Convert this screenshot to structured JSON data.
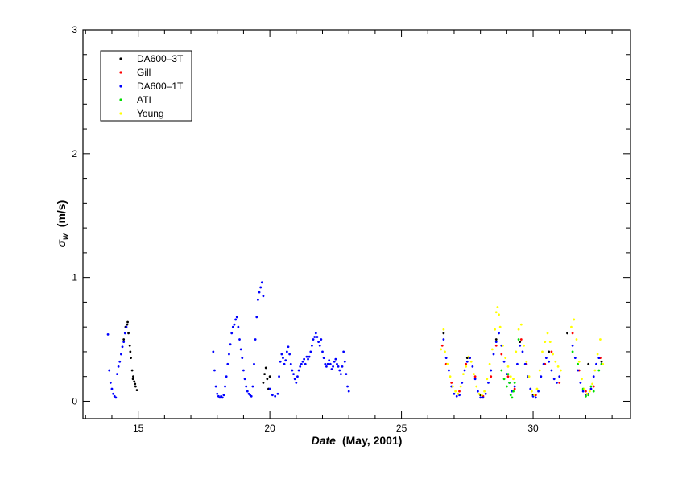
{
  "chart_data": {
    "type": "scatter",
    "xlabel_main": "Date",
    "xlabel_rest": "(May,  2001)",
    "ylabel_symbol": "σ",
    "ylabel_sub": "w",
    "ylabel_unit": "(m/s)",
    "xlim": [
      12.9,
      33.7
    ],
    "ylim": [
      -0.14,
      3.0
    ],
    "xticks": [
      15,
      20,
      25,
      30
    ],
    "yticks": [
      0,
      1,
      2,
      3
    ],
    "legend_position": "top-left",
    "grid": false,
    "series": [
      {
        "name": "DA600–3T",
        "color": "#000000",
        "points": [
          [
            14.45,
            0.5
          ],
          [
            14.52,
            0.6
          ],
          [
            14.58,
            0.62
          ],
          [
            14.63,
            0.55
          ],
          [
            14.68,
            0.45
          ],
          [
            14.72,
            0.35
          ],
          [
            14.77,
            0.25
          ],
          [
            14.81,
            0.2
          ],
          [
            14.85,
            0.16
          ],
          [
            14.9,
            0.12
          ],
          [
            14.95,
            0.09
          ],
          [
            14.6,
            0.64
          ],
          [
            14.7,
            0.4
          ],
          [
            14.8,
            0.18
          ],
          [
            14.88,
            0.14
          ],
          [
            19.75,
            0.15
          ],
          [
            19.8,
            0.22
          ],
          [
            19.85,
            0.27
          ],
          [
            19.9,
            0.18
          ],
          [
            19.95,
            0.1
          ],
          [
            20.0,
            0.2
          ],
          [
            26.6,
            0.55
          ],
          [
            27.5,
            0.35
          ],
          [
            28.0,
            0.05
          ],
          [
            28.6,
            0.5
          ],
          [
            29.5,
            0.48
          ],
          [
            30.0,
            0.05
          ],
          [
            30.6,
            0.4
          ],
          [
            31.3,
            0.55
          ],
          [
            32.1,
            0.3
          ],
          [
            32.6,
            0.32
          ]
        ]
      },
      {
        "name": "Gill",
        "color": "#ff0000",
        "points": [
          [
            26.55,
            0.45
          ],
          [
            26.7,
            0.3
          ],
          [
            26.9,
            0.15
          ],
          [
            27.2,
            0.08
          ],
          [
            27.45,
            0.3
          ],
          [
            27.6,
            0.35
          ],
          [
            27.8,
            0.2
          ],
          [
            28.1,
            0.04
          ],
          [
            28.4,
            0.2
          ],
          [
            28.6,
            0.45
          ],
          [
            28.8,
            0.38
          ],
          [
            29.05,
            0.2
          ],
          [
            29.3,
            0.1
          ],
          [
            29.55,
            0.5
          ],
          [
            29.75,
            0.3
          ],
          [
            30.1,
            0.05
          ],
          [
            30.45,
            0.3
          ],
          [
            30.7,
            0.4
          ],
          [
            31.0,
            0.15
          ],
          [
            31.5,
            0.55
          ],
          [
            31.75,
            0.25
          ],
          [
            32.0,
            0.08
          ],
          [
            32.3,
            0.12
          ],
          [
            32.55,
            0.35
          ]
        ]
      },
      {
        "name": "DA600–1T",
        "color": "#0000ff",
        "points": [
          [
            13.85,
            0.54
          ],
          [
            13.9,
            0.25
          ],
          [
            13.95,
            0.15
          ],
          [
            14.0,
            0.1
          ],
          [
            14.05,
            0.06
          ],
          [
            14.1,
            0.04
          ],
          [
            14.15,
            0.03
          ],
          [
            14.2,
            0.22
          ],
          [
            14.25,
            0.28
          ],
          [
            14.3,
            0.32
          ],
          [
            14.35,
            0.38
          ],
          [
            14.4,
            0.44
          ],
          [
            14.45,
            0.48
          ],
          [
            14.5,
            0.55
          ],
          [
            14.55,
            0.6
          ],
          [
            17.85,
            0.4
          ],
          [
            17.9,
            0.25
          ],
          [
            17.95,
            0.12
          ],
          [
            18.0,
            0.06
          ],
          [
            18.05,
            0.04
          ],
          [
            18.1,
            0.03
          ],
          [
            18.15,
            0.04
          ],
          [
            18.2,
            0.03
          ],
          [
            18.25,
            0.05
          ],
          [
            18.3,
            0.12
          ],
          [
            18.35,
            0.2
          ],
          [
            18.4,
            0.3
          ],
          [
            18.45,
            0.38
          ],
          [
            18.5,
            0.46
          ],
          [
            18.55,
            0.55
          ],
          [
            18.6,
            0.6
          ],
          [
            18.65,
            0.62
          ],
          [
            18.7,
            0.66
          ],
          [
            18.75,
            0.68
          ],
          [
            18.8,
            0.6
          ],
          [
            18.85,
            0.5
          ],
          [
            18.9,
            0.42
          ],
          [
            18.95,
            0.35
          ],
          [
            19.0,
            0.25
          ],
          [
            19.05,
            0.18
          ],
          [
            19.1,
            0.12
          ],
          [
            19.15,
            0.08
          ],
          [
            19.2,
            0.06
          ],
          [
            19.25,
            0.05
          ],
          [
            19.3,
            0.04
          ],
          [
            19.35,
            0.12
          ],
          [
            19.4,
            0.3
          ],
          [
            19.45,
            0.5
          ],
          [
            19.5,
            0.68
          ],
          [
            19.55,
            0.82
          ],
          [
            19.6,
            0.88
          ],
          [
            19.65,
            0.92
          ],
          [
            19.7,
            0.96
          ],
          [
            19.75,
            0.85
          ],
          [
            20.0,
            0.1
          ],
          [
            20.1,
            0.05
          ],
          [
            20.2,
            0.04
          ],
          [
            20.3,
            0.06
          ],
          [
            20.35,
            0.2
          ],
          [
            20.4,
            0.32
          ],
          [
            20.45,
            0.38
          ],
          [
            20.5,
            0.35
          ],
          [
            20.55,
            0.3
          ],
          [
            20.6,
            0.33
          ],
          [
            20.65,
            0.4
          ],
          [
            20.7,
            0.44
          ],
          [
            20.75,
            0.38
          ],
          [
            20.8,
            0.3
          ],
          [
            20.85,
            0.25
          ],
          [
            20.9,
            0.22
          ],
          [
            20.95,
            0.18
          ],
          [
            21.0,
            0.15
          ],
          [
            21.05,
            0.2
          ],
          [
            21.1,
            0.25
          ],
          [
            21.15,
            0.28
          ],
          [
            21.2,
            0.3
          ],
          [
            21.25,
            0.32
          ],
          [
            21.3,
            0.34
          ],
          [
            21.35,
            0.3
          ],
          [
            21.4,
            0.36
          ],
          [
            21.45,
            0.34
          ],
          [
            21.5,
            0.36
          ],
          [
            21.55,
            0.4
          ],
          [
            21.6,
            0.45
          ],
          [
            21.65,
            0.5
          ],
          [
            21.7,
            0.52
          ],
          [
            21.75,
            0.55
          ],
          [
            21.8,
            0.52
          ],
          [
            21.85,
            0.48
          ],
          [
            21.9,
            0.45
          ],
          [
            21.95,
            0.5
          ],
          [
            22.0,
            0.4
          ],
          [
            22.05,
            0.35
          ],
          [
            22.1,
            0.3
          ],
          [
            22.15,
            0.28
          ],
          [
            22.2,
            0.3
          ],
          [
            22.25,
            0.33
          ],
          [
            22.3,
            0.3
          ],
          [
            22.35,
            0.26
          ],
          [
            22.4,
            0.28
          ],
          [
            22.45,
            0.32
          ],
          [
            22.5,
            0.34
          ],
          [
            22.55,
            0.3
          ],
          [
            22.6,
            0.28
          ],
          [
            22.65,
            0.25
          ],
          [
            22.7,
            0.22
          ],
          [
            22.75,
            0.28
          ],
          [
            22.8,
            0.4
          ],
          [
            22.85,
            0.32
          ],
          [
            22.9,
            0.22
          ],
          [
            22.95,
            0.12
          ],
          [
            23.0,
            0.08
          ],
          [
            26.6,
            0.5
          ],
          [
            26.7,
            0.35
          ],
          [
            26.8,
            0.25
          ],
          [
            26.9,
            0.12
          ],
          [
            27.0,
            0.06
          ],
          [
            27.1,
            0.04
          ],
          [
            27.2,
            0.05
          ],
          [
            27.3,
            0.15
          ],
          [
            27.4,
            0.25
          ],
          [
            27.5,
            0.32
          ],
          [
            27.6,
            0.35
          ],
          [
            27.7,
            0.28
          ],
          [
            27.8,
            0.18
          ],
          [
            27.9,
            0.08
          ],
          [
            28.0,
            0.03
          ],
          [
            28.1,
            0.03
          ],
          [
            28.2,
            0.06
          ],
          [
            28.3,
            0.15
          ],
          [
            28.4,
            0.25
          ],
          [
            28.5,
            0.38
          ],
          [
            28.6,
            0.48
          ],
          [
            28.7,
            0.55
          ],
          [
            28.8,
            0.45
          ],
          [
            28.9,
            0.32
          ],
          [
            29.0,
            0.22
          ],
          [
            29.1,
            0.15
          ],
          [
            29.2,
            0.08
          ],
          [
            29.3,
            0.12
          ],
          [
            29.4,
            0.3
          ],
          [
            29.5,
            0.45
          ],
          [
            29.6,
            0.4
          ],
          [
            29.7,
            0.3
          ],
          [
            29.8,
            0.2
          ],
          [
            29.9,
            0.1
          ],
          [
            30.0,
            0.04
          ],
          [
            30.1,
            0.03
          ],
          [
            30.2,
            0.08
          ],
          [
            30.3,
            0.2
          ],
          [
            30.4,
            0.3
          ],
          [
            30.5,
            0.35
          ],
          [
            30.6,
            0.32
          ],
          [
            30.7,
            0.25
          ],
          [
            30.8,
            0.18
          ],
          [
            30.9,
            0.15
          ],
          [
            31.0,
            0.2
          ],
          [
            31.5,
            0.45
          ],
          [
            31.6,
            0.35
          ],
          [
            31.7,
            0.25
          ],
          [
            31.8,
            0.15
          ],
          [
            31.9,
            0.08
          ],
          [
            32.0,
            0.05
          ],
          [
            32.1,
            0.06
          ],
          [
            32.2,
            0.1
          ],
          [
            32.3,
            0.2
          ],
          [
            32.4,
            0.3
          ],
          [
            32.5,
            0.35
          ],
          [
            32.6,
            0.3
          ]
        ]
      },
      {
        "name": "ATI",
        "color": "#00e000",
        "points": [
          [
            28.8,
            0.25
          ],
          [
            28.9,
            0.18
          ],
          [
            29.0,
            0.12
          ],
          [
            29.05,
            0.22
          ],
          [
            29.1,
            0.15
          ],
          [
            29.15,
            0.05
          ],
          [
            29.2,
            0.03
          ],
          [
            29.25,
            0.08
          ],
          [
            29.3,
            0.15
          ],
          [
            29.45,
            0.5
          ],
          [
            31.5,
            0.4
          ],
          [
            31.7,
            0.3
          ],
          [
            31.9,
            0.1
          ],
          [
            32.0,
            0.04
          ],
          [
            32.1,
            0.05
          ],
          [
            32.2,
            0.12
          ],
          [
            32.3,
            0.08
          ],
          [
            32.5,
            0.25
          ],
          [
            32.6,
            0.3
          ]
        ]
      },
      {
        "name": "Young",
        "color": "#ffff00",
        "points": [
          [
            26.5,
            0.42
          ],
          [
            26.6,
            0.58
          ],
          [
            26.65,
            0.4
          ],
          [
            26.75,
            0.3
          ],
          [
            26.85,
            0.2
          ],
          [
            26.95,
            0.12
          ],
          [
            27.05,
            0.08
          ],
          [
            27.15,
            0.06
          ],
          [
            27.25,
            0.12
          ],
          [
            27.35,
            0.22
          ],
          [
            27.45,
            0.28
          ],
          [
            27.55,
            0.36
          ],
          [
            27.65,
            0.32
          ],
          [
            27.75,
            0.22
          ],
          [
            27.85,
            0.12
          ],
          [
            27.95,
            0.06
          ],
          [
            28.05,
            0.05
          ],
          [
            28.15,
            0.08
          ],
          [
            28.25,
            0.18
          ],
          [
            28.35,
            0.3
          ],
          [
            28.45,
            0.42
          ],
          [
            28.55,
            0.58
          ],
          [
            28.6,
            0.72
          ],
          [
            28.65,
            0.76
          ],
          [
            28.7,
            0.7
          ],
          [
            28.75,
            0.6
          ],
          [
            28.85,
            0.45
          ],
          [
            28.95,
            0.35
          ],
          [
            29.05,
            0.28
          ],
          [
            29.15,
            0.2
          ],
          [
            29.25,
            0.18
          ],
          [
            29.35,
            0.4
          ],
          [
            29.45,
            0.58
          ],
          [
            29.55,
            0.62
          ],
          [
            29.65,
            0.45
          ],
          [
            29.75,
            0.32
          ],
          [
            29.85,
            0.2
          ],
          [
            29.95,
            0.08
          ],
          [
            30.05,
            0.05
          ],
          [
            30.15,
            0.1
          ],
          [
            30.25,
            0.25
          ],
          [
            30.35,
            0.4
          ],
          [
            30.45,
            0.48
          ],
          [
            30.55,
            0.55
          ],
          [
            30.65,
            0.48
          ],
          [
            30.75,
            0.38
          ],
          [
            30.85,
            0.32
          ],
          [
            30.95,
            0.28
          ],
          [
            31.05,
            0.25
          ],
          [
            31.45,
            0.6
          ],
          [
            31.55,
            0.66
          ],
          [
            31.65,
            0.5
          ],
          [
            31.75,
            0.32
          ],
          [
            31.85,
            0.18
          ],
          [
            31.95,
            0.1
          ],
          [
            32.05,
            0.06
          ],
          [
            32.15,
            0.08
          ],
          [
            32.25,
            0.14
          ],
          [
            32.35,
            0.25
          ],
          [
            32.45,
            0.38
          ],
          [
            32.55,
            0.5
          ],
          [
            32.65,
            0.3
          ]
        ]
      }
    ]
  }
}
